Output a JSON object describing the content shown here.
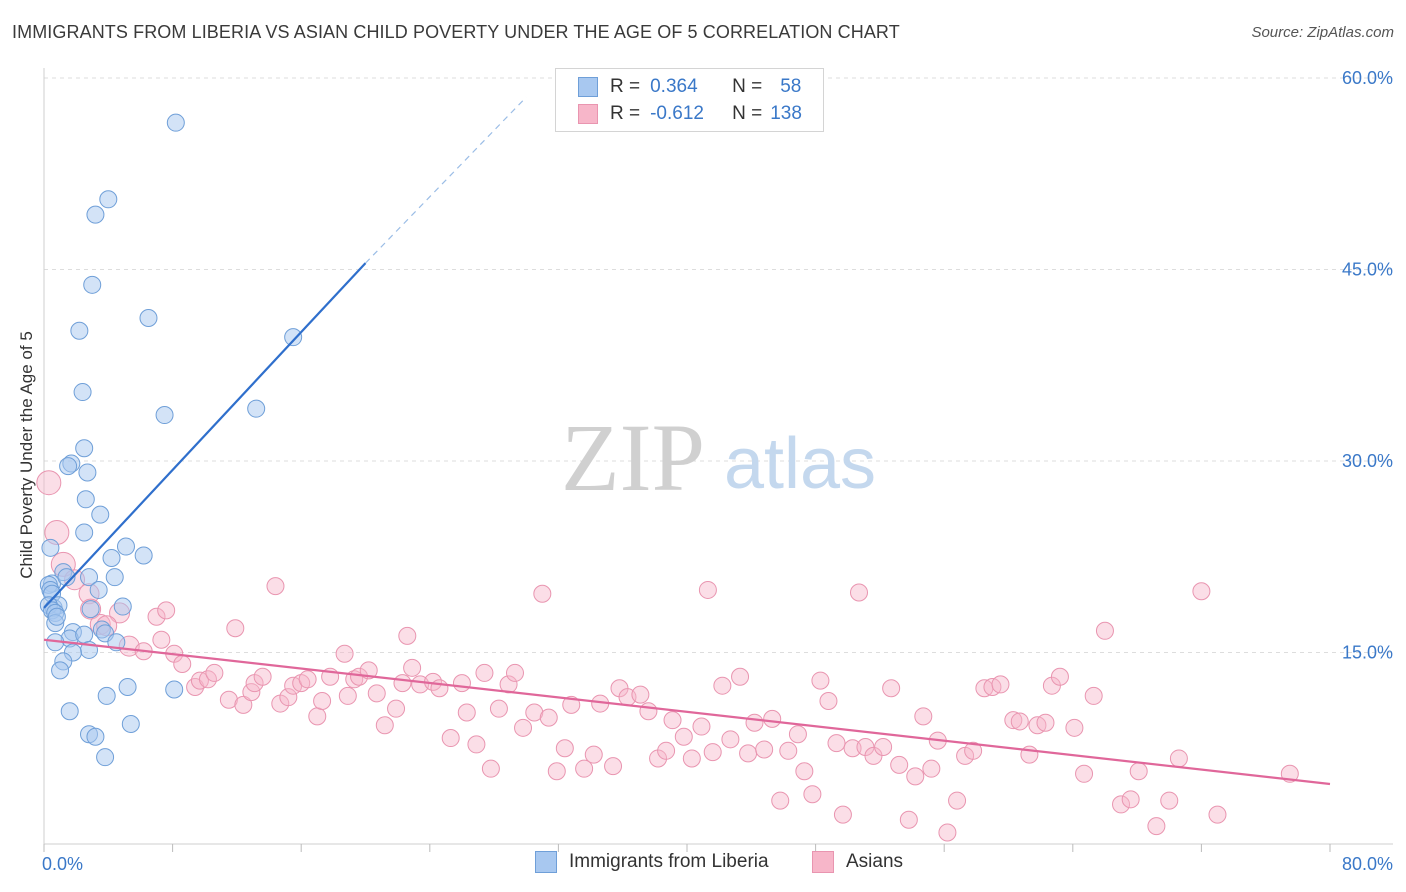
{
  "title": "IMMIGRANTS FROM LIBERIA VS ASIAN CHILD POVERTY UNDER THE AGE OF 5 CORRELATION CHART",
  "source": "Source: ZipAtlas.com",
  "watermark": {
    "zip": "ZIP",
    "atlas": "atlas"
  },
  "colors": {
    "blue_fill": "#a8c8f0",
    "blue_stroke": "#6f9fd8",
    "blue_line": "#2f6fcc",
    "pink_fill": "#f7b6c9",
    "pink_stroke": "#e995b0",
    "pink_line": "#e0679a",
    "axis_label": "#3a78c8",
    "grid": "#dddddd"
  },
  "legend_top": {
    "rows": [
      {
        "r_label": "R =",
        "r_value": "0.364",
        "n_label": "N =",
        "n_value": "58"
      },
      {
        "r_label": "R =",
        "r_value": "-0.612",
        "n_label": "N =",
        "n_value": "138"
      }
    ]
  },
  "legend_bottom": [
    "Immigrants from Liberia",
    "Asians"
  ],
  "chart_data": {
    "type": "scatter",
    "title": "IMMIGRANTS FROM LIBERIA VS ASIAN CHILD POVERTY UNDER THE AGE OF 5 CORRELATION CHART",
    "xlabel": "",
    "ylabel": "Child Poverty Under the Age of 5",
    "xlim": [
      0,
      80
    ],
    "ylim": [
      0,
      60
    ],
    "x_tick_labels": [
      "0.0%",
      "80.0%"
    ],
    "y_tick_labels": [
      "15.0%",
      "30.0%",
      "45.0%",
      "60.0%"
    ],
    "y_ticks": [
      15,
      30,
      45,
      60
    ],
    "grid": true,
    "series": [
      {
        "name": "Immigrants from Liberia",
        "r": 0.364,
        "n": 58,
        "trend": {
          "x0": 0,
          "y0": 18.5,
          "x1": 20,
          "y1": 45.5,
          "dashed_to_x": 30,
          "dashed_to_y": 58.5
        },
        "points": [
          [
            8.2,
            56.5
          ],
          [
            4.0,
            50.5
          ],
          [
            3.2,
            49.3
          ],
          [
            3.0,
            43.8
          ],
          [
            6.5,
            41.2
          ],
          [
            2.2,
            40.2
          ],
          [
            15.5,
            39.7
          ],
          [
            2.4,
            35.4
          ],
          [
            7.5,
            33.6
          ],
          [
            13.2,
            34.1
          ],
          [
            2.5,
            31.0
          ],
          [
            1.7,
            29.8
          ],
          [
            1.5,
            29.6
          ],
          [
            2.7,
            29.1
          ],
          [
            2.6,
            27.0
          ],
          [
            3.5,
            25.8
          ],
          [
            0.4,
            23.2
          ],
          [
            2.5,
            24.4
          ],
          [
            5.1,
            23.3
          ],
          [
            4.2,
            22.4
          ],
          [
            6.2,
            22.6
          ],
          [
            1.2,
            21.3
          ],
          [
            0.5,
            20.4
          ],
          [
            0.3,
            20.3
          ],
          [
            0.4,
            19.9
          ],
          [
            0.5,
            19.6
          ],
          [
            2.8,
            20.9
          ],
          [
            4.4,
            20.9
          ],
          [
            3.4,
            19.9
          ],
          [
            0.6,
            18.5
          ],
          [
            0.9,
            18.7
          ],
          [
            0.3,
            18.7
          ],
          [
            0.5,
            18.3
          ],
          [
            0.7,
            18.1
          ],
          [
            1.4,
            20.9
          ],
          [
            2.9,
            18.4
          ],
          [
            4.9,
            18.6
          ],
          [
            0.7,
            17.3
          ],
          [
            1.8,
            16.6
          ],
          [
            1.6,
            16.1
          ],
          [
            3.6,
            16.8
          ],
          [
            3.8,
            16.5
          ],
          [
            2.5,
            16.4
          ],
          [
            0.7,
            15.8
          ],
          [
            2.8,
            15.2
          ],
          [
            1.8,
            15.0
          ],
          [
            4.5,
            15.8
          ],
          [
            1.2,
            14.3
          ],
          [
            1.0,
            13.6
          ],
          [
            5.2,
            12.3
          ],
          [
            8.1,
            12.1
          ],
          [
            3.9,
            11.6
          ],
          [
            1.6,
            10.4
          ],
          [
            5.4,
            9.4
          ],
          [
            2.8,
            8.6
          ],
          [
            3.2,
            8.4
          ],
          [
            3.8,
            6.8
          ],
          [
            0.8,
            17.8
          ]
        ]
      },
      {
        "name": "Asians",
        "r": -0.612,
        "n": 138,
        "trend": {
          "x0": 0,
          "y0": 16.0,
          "x1": 80,
          "y1": 4.7
        },
        "points": [
          [
            0.3,
            28.3
          ],
          [
            0.8,
            24.4
          ],
          [
            1.2,
            21.9
          ],
          [
            1.9,
            20.7
          ],
          [
            2.8,
            19.6
          ],
          [
            2.9,
            18.4
          ],
          [
            3.5,
            17.2
          ],
          [
            4.7,
            18.1
          ],
          [
            3.9,
            17.1
          ],
          [
            5.3,
            15.5
          ],
          [
            6.2,
            15.1
          ],
          [
            7.0,
            17.8
          ],
          [
            7.6,
            18.3
          ],
          [
            7.3,
            16.0
          ],
          [
            8.1,
            14.9
          ],
          [
            8.6,
            14.1
          ],
          [
            9.4,
            12.3
          ],
          [
            9.7,
            12.8
          ],
          [
            10.2,
            12.9
          ],
          [
            10.6,
            13.4
          ],
          [
            11.5,
            11.3
          ],
          [
            11.9,
            16.9
          ],
          [
            12.4,
            10.9
          ],
          [
            12.9,
            11.9
          ],
          [
            13.1,
            12.6
          ],
          [
            13.6,
            13.1
          ],
          [
            14.4,
            20.2
          ],
          [
            14.7,
            11.0
          ],
          [
            15.2,
            11.5
          ],
          [
            15.5,
            12.4
          ],
          [
            16.0,
            12.6
          ],
          [
            16.4,
            12.9
          ],
          [
            17.0,
            10.0
          ],
          [
            17.3,
            11.2
          ],
          [
            17.8,
            13.1
          ],
          [
            18.7,
            14.9
          ],
          [
            18.9,
            11.6
          ],
          [
            19.3,
            12.9
          ],
          [
            19.6,
            13.1
          ],
          [
            20.2,
            13.6
          ],
          [
            20.7,
            11.8
          ],
          [
            21.2,
            9.3
          ],
          [
            21.9,
            10.6
          ],
          [
            22.3,
            12.6
          ],
          [
            22.6,
            16.3
          ],
          [
            22.9,
            13.8
          ],
          [
            23.4,
            12.5
          ],
          [
            24.2,
            12.7
          ],
          [
            24.6,
            12.2
          ],
          [
            25.3,
            8.3
          ],
          [
            26.0,
            12.6
          ],
          [
            26.3,
            10.3
          ],
          [
            26.9,
            7.8
          ],
          [
            27.4,
            13.4
          ],
          [
            27.8,
            5.9
          ],
          [
            28.3,
            10.6
          ],
          [
            28.9,
            12.5
          ],
          [
            29.3,
            13.4
          ],
          [
            29.8,
            9.1
          ],
          [
            30.5,
            10.3
          ],
          [
            31.0,
            19.6
          ],
          [
            31.4,
            9.9
          ],
          [
            31.9,
            5.7
          ],
          [
            32.4,
            7.5
          ],
          [
            32.8,
            10.9
          ],
          [
            33.6,
            5.9
          ],
          [
            34.2,
            7.0
          ],
          [
            34.6,
            11.0
          ],
          [
            35.4,
            6.1
          ],
          [
            35.8,
            12.2
          ],
          [
            36.3,
            11.5
          ],
          [
            37.1,
            11.7
          ],
          [
            37.6,
            10.4
          ],
          [
            38.2,
            6.7
          ],
          [
            38.7,
            7.3
          ],
          [
            39.1,
            9.7
          ],
          [
            39.8,
            8.4
          ],
          [
            40.3,
            6.7
          ],
          [
            40.9,
            9.2
          ],
          [
            41.3,
            19.9
          ],
          [
            41.6,
            7.2
          ],
          [
            42.2,
            12.4
          ],
          [
            42.7,
            8.2
          ],
          [
            43.3,
            13.1
          ],
          [
            43.8,
            7.1
          ],
          [
            44.2,
            9.5
          ],
          [
            44.8,
            7.4
          ],
          [
            45.3,
            9.8
          ],
          [
            45.8,
            3.4
          ],
          [
            46.3,
            7.3
          ],
          [
            46.9,
            8.6
          ],
          [
            47.3,
            5.7
          ],
          [
            47.8,
            3.9
          ],
          [
            48.3,
            12.8
          ],
          [
            48.8,
            11.2
          ],
          [
            49.3,
            7.9
          ],
          [
            49.7,
            2.3
          ],
          [
            50.3,
            7.5
          ],
          [
            50.7,
            19.7
          ],
          [
            51.1,
            7.6
          ],
          [
            51.6,
            6.9
          ],
          [
            52.2,
            7.6
          ],
          [
            52.7,
            12.2
          ],
          [
            53.2,
            6.2
          ],
          [
            53.8,
            1.9
          ],
          [
            54.2,
            5.3
          ],
          [
            54.7,
            10.0
          ],
          [
            55.2,
            5.9
          ],
          [
            55.6,
            8.1
          ],
          [
            56.2,
            0.9
          ],
          [
            56.8,
            3.4
          ],
          [
            57.3,
            6.9
          ],
          [
            57.8,
            7.3
          ],
          [
            58.5,
            12.2
          ],
          [
            59.0,
            12.3
          ],
          [
            59.5,
            12.5
          ],
          [
            60.3,
            9.7
          ],
          [
            60.7,
            9.6
          ],
          [
            61.3,
            7.0
          ],
          [
            61.8,
            9.3
          ],
          [
            62.3,
            9.5
          ],
          [
            62.7,
            12.4
          ],
          [
            63.2,
            13.1
          ],
          [
            64.1,
            9.1
          ],
          [
            64.7,
            5.5
          ],
          [
            65.3,
            11.6
          ],
          [
            66.0,
            16.7
          ],
          [
            67.0,
            3.1
          ],
          [
            67.6,
            3.5
          ],
          [
            68.1,
            5.7
          ],
          [
            69.2,
            1.4
          ],
          [
            70.0,
            3.4
          ],
          [
            70.6,
            6.7
          ],
          [
            72.0,
            19.8
          ],
          [
            73.0,
            2.3
          ],
          [
            77.5,
            5.5
          ]
        ]
      }
    ]
  }
}
